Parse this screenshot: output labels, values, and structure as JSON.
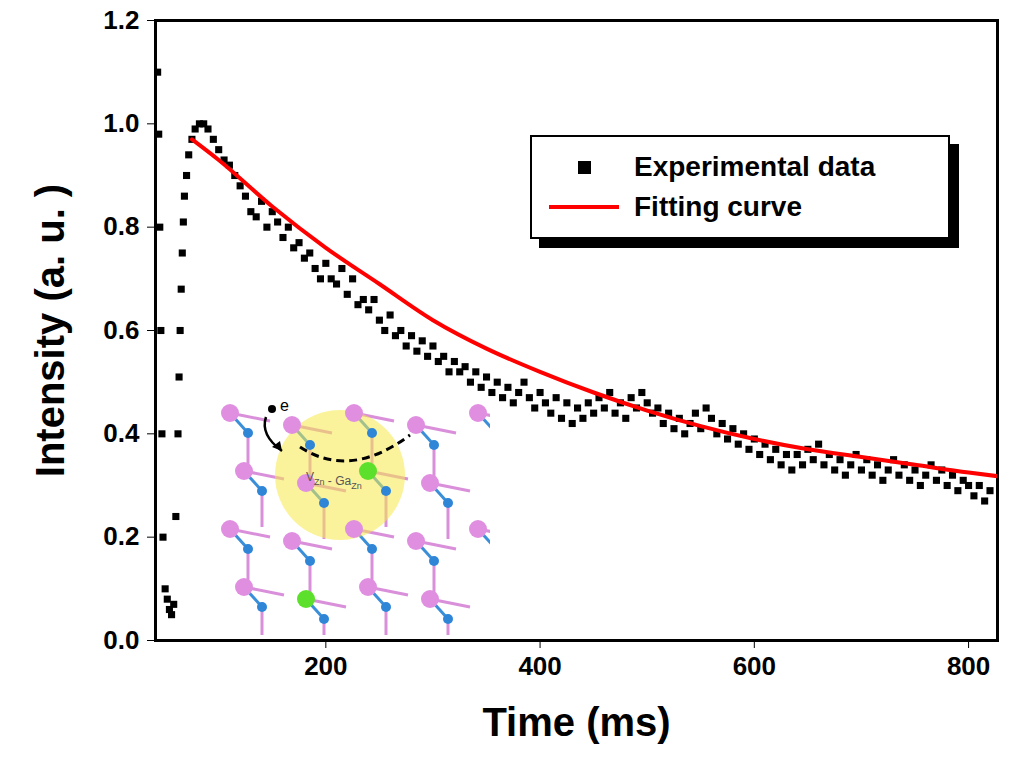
{
  "chart_data": {
    "type": "scatter",
    "x_label": "Time (ms)",
    "y_label": "Intensity (a. u. )",
    "xlim": [
      41,
      827
    ],
    "xticks": [
      200,
      400,
      600,
      800
    ],
    "ylim": [
      0,
      1.2
    ],
    "yticks": [
      {
        "value": 0,
        "label": "0.0"
      },
      0.2,
      0.4,
      0.6,
      0.8,
      {
        "value": 1,
        "label": "1.0"
      },
      1.2
    ],
    "legend": "top-right",
    "series": [
      {
        "name": "Experimental data",
        "type": "scatter",
        "marker": "square",
        "color": "#000000",
        "x": [
          43,
          44,
          45,
          46,
          47,
          48,
          50,
          52,
          54,
          56,
          58,
          60,
          62,
          63,
          64,
          65,
          66,
          67,
          68,
          70,
          72,
          75,
          78,
          82,
          86,
          90,
          95,
          100,
          105,
          110,
          115,
          120,
          125,
          130,
          135,
          140,
          145,
          150,
          155,
          160,
          165,
          170,
          175,
          180,
          185,
          190,
          195,
          200,
          205,
          210,
          215,
          220,
          225,
          230,
          235,
          240,
          245,
          250,
          255,
          260,
          265,
          270,
          275,
          280,
          285,
          290,
          295,
          300,
          305,
          310,
          315,
          320,
          325,
          330,
          335,
          340,
          345,
          350,
          355,
          360,
          365,
          370,
          375,
          380,
          385,
          390,
          395,
          400,
          405,
          410,
          415,
          420,
          425,
          430,
          435,
          440,
          445,
          450,
          455,
          460,
          465,
          470,
          475,
          480,
          485,
          490,
          495,
          500,
          505,
          510,
          515,
          520,
          525,
          530,
          535,
          540,
          545,
          550,
          555,
          560,
          565,
          570,
          575,
          580,
          585,
          590,
          595,
          600,
          605,
          610,
          615,
          620,
          625,
          630,
          635,
          640,
          645,
          650,
          655,
          660,
          665,
          670,
          675,
          680,
          685,
          690,
          695,
          700,
          705,
          710,
          715,
          720,
          725,
          730,
          735,
          740,
          745,
          750,
          755,
          760,
          765,
          770,
          775,
          780,
          785,
          790,
          795,
          800,
          805,
          810,
          815,
          820
        ],
        "values": [
          1.1,
          0.98,
          0.8,
          0.6,
          0.4,
          0.2,
          0.1,
          0.08,
          0.06,
          0.05,
          0.07,
          0.24,
          0.4,
          0.51,
          0.6,
          0.68,
          0.75,
          0.81,
          0.86,
          0.9,
          0.94,
          0.97,
          0.99,
          1.0,
          1.0,
          0.99,
          0.97,
          0.95,
          0.93,
          0.92,
          0.9,
          0.88,
          0.86,
          0.83,
          0.82,
          0.85,
          0.8,
          0.83,
          0.81,
          0.78,
          0.8,
          0.76,
          0.77,
          0.74,
          0.75,
          0.72,
          0.7,
          0.73,
          0.7,
          0.69,
          0.72,
          0.67,
          0.7,
          0.65,
          0.66,
          0.64,
          0.66,
          0.62,
          0.6,
          0.63,
          0.59,
          0.6,
          0.57,
          0.59,
          0.56,
          0.58,
          0.55,
          0.57,
          0.54,
          0.55,
          0.52,
          0.54,
          0.52,
          0.53,
          0.5,
          0.52,
          0.49,
          0.51,
          0.48,
          0.5,
          0.47,
          0.49,
          0.46,
          0.48,
          0.5,
          0.47,
          0.45,
          0.48,
          0.46,
          0.44,
          0.47,
          0.43,
          0.46,
          0.42,
          0.45,
          0.43,
          0.46,
          0.44,
          0.47,
          0.45,
          0.48,
          0.44,
          0.46,
          0.43,
          0.47,
          0.45,
          0.48,
          0.46,
          0.44,
          0.45,
          0.42,
          0.44,
          0.41,
          0.43,
          0.4,
          0.42,
          0.44,
          0.41,
          0.45,
          0.43,
          0.4,
          0.42,
          0.39,
          0.41,
          0.38,
          0.4,
          0.37,
          0.39,
          0.36,
          0.38,
          0.35,
          0.37,
          0.34,
          0.36,
          0.33,
          0.36,
          0.34,
          0.37,
          0.35,
          0.38,
          0.34,
          0.36,
          0.33,
          0.35,
          0.32,
          0.34,
          0.36,
          0.33,
          0.35,
          0.32,
          0.34,
          0.31,
          0.33,
          0.35,
          0.32,
          0.34,
          0.31,
          0.33,
          0.3,
          0.32,
          0.34,
          0.31,
          0.33,
          0.3,
          0.32,
          0.29,
          0.31,
          0.3,
          0.28,
          0.3,
          0.27,
          0.29
        ]
      },
      {
        "name": "Fitting curve",
        "type": "line",
        "line_style": "solid",
        "color": "#ff0000",
        "x": [
          75,
          100,
          150,
          200,
          250,
          300,
          350,
          400,
          450,
          500,
          550,
          600,
          650,
          700,
          750,
          800,
          827
        ],
        "values": [
          0.97,
          0.93,
          0.84,
          0.76,
          0.69,
          0.62,
          0.565,
          0.52,
          0.48,
          0.445,
          0.415,
          0.39,
          0.37,
          0.355,
          0.34,
          0.325,
          0.318
        ]
      }
    ],
    "inset": {
      "electron_label": "e",
      "defect_label": [
        {
          "text": "V",
          "sub": "Zn"
        },
        {
          "text": " - "
        },
        {
          "text": "Ga",
          "sub": "Zn"
        }
      ]
    }
  }
}
